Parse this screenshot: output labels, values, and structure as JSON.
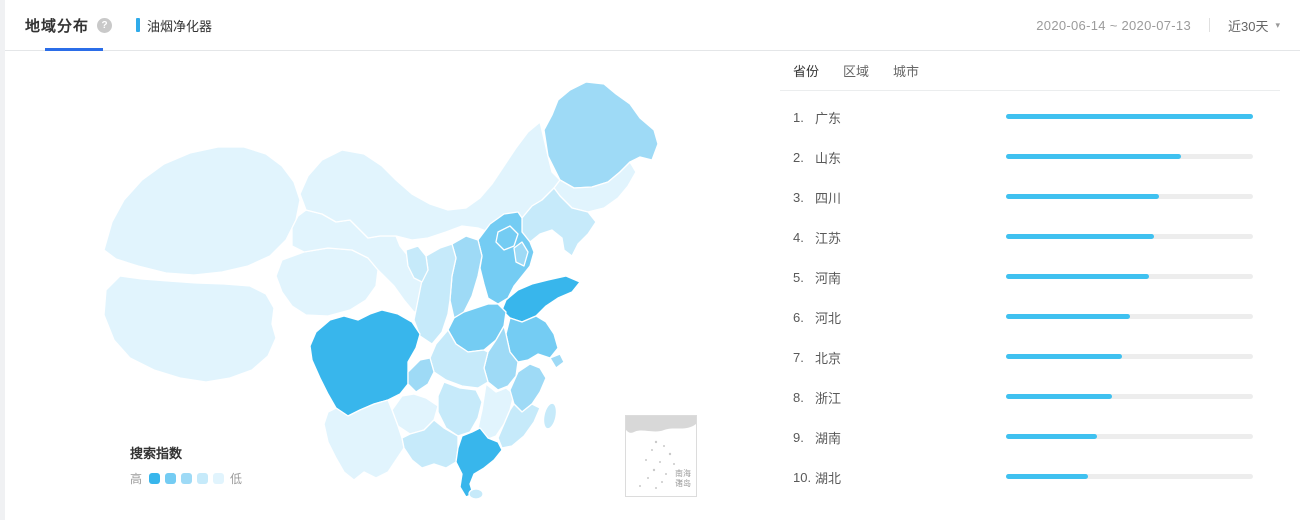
{
  "header": {
    "title": "地域分布",
    "help_glyph": "?",
    "keyword": "油烟净化器",
    "date_range": "2020-06-14 ~ 2020-07-13",
    "period": "近30天",
    "caret_glyph": "▾"
  },
  "tabs": [
    {
      "id": "province",
      "label": "省份",
      "active": true
    },
    {
      "id": "region",
      "label": "区域",
      "active": false
    },
    {
      "id": "city",
      "label": "城市",
      "active": false
    }
  ],
  "ranking": [
    {
      "rank": "1.",
      "name": "广东",
      "percent": 100
    },
    {
      "rank": "2.",
      "name": "山东",
      "percent": 71
    },
    {
      "rank": "3.",
      "name": "四川",
      "percent": 62
    },
    {
      "rank": "4.",
      "name": "江苏",
      "percent": 60
    },
    {
      "rank": "5.",
      "name": "河南",
      "percent": 58
    },
    {
      "rank": "6.",
      "name": "河北",
      "percent": 50
    },
    {
      "rank": "7.",
      "name": "北京",
      "percent": 47
    },
    {
      "rank": "8.",
      "name": "浙江",
      "percent": 43
    },
    {
      "rank": "9.",
      "name": "湖南",
      "percent": 37
    },
    {
      "rank": "10.",
      "name": "湖北",
      "percent": 33
    }
  ],
  "legend": {
    "title": "搜索指数",
    "high": "高",
    "low": "低"
  },
  "colors": {
    "accent": "#2b6de8",
    "keyword_marker": "#2fabea",
    "bar": "#3fc1f0",
    "bar_track": "#ededed",
    "palette": [
      "#38b6ec",
      "#74ccf3",
      "#9edaf6",
      "#c6eafa",
      "#e1f4fd"
    ]
  },
  "map": {
    "inset_line1": "南海",
    "inset_line2": "诸岛",
    "regions": [
      {
        "id": "xinjiang",
        "level": 5
      },
      {
        "id": "tibet",
        "level": 5
      },
      {
        "id": "qinghai",
        "level": 5
      },
      {
        "id": "gansu",
        "level": 5
      },
      {
        "id": "inner-mongolia",
        "level": 5
      },
      {
        "id": "ningxia",
        "level": 4
      },
      {
        "id": "shaanxi",
        "level": 4
      },
      {
        "id": "shanxi",
        "level": 3
      },
      {
        "id": "hebei",
        "level": 2
      },
      {
        "id": "beijing",
        "level": 2
      },
      {
        "id": "tianjin",
        "level": 3
      },
      {
        "id": "shandong",
        "level": 1
      },
      {
        "id": "henan",
        "level": 2
      },
      {
        "id": "jiangsu",
        "level": 2
      },
      {
        "id": "anhui",
        "level": 3
      },
      {
        "id": "shanghai",
        "level": 3
      },
      {
        "id": "hubei",
        "level": 4
      },
      {
        "id": "chongqing",
        "level": 3
      },
      {
        "id": "sichuan",
        "level": 1
      },
      {
        "id": "guizhou",
        "level": 5
      },
      {
        "id": "yunnan",
        "level": 5
      },
      {
        "id": "hunan",
        "level": 4
      },
      {
        "id": "jiangxi",
        "level": 5
      },
      {
        "id": "zhejiang",
        "level": 3
      },
      {
        "id": "fujian",
        "level": 4
      },
      {
        "id": "guangdong",
        "level": 1
      },
      {
        "id": "guangxi",
        "level": 4
      },
      {
        "id": "hainan",
        "level": 4
      },
      {
        "id": "taiwan",
        "level": 4
      },
      {
        "id": "heilongjiang",
        "level": 3
      },
      {
        "id": "jilin",
        "level": 5
      },
      {
        "id": "liaoning",
        "level": 4
      }
    ]
  }
}
